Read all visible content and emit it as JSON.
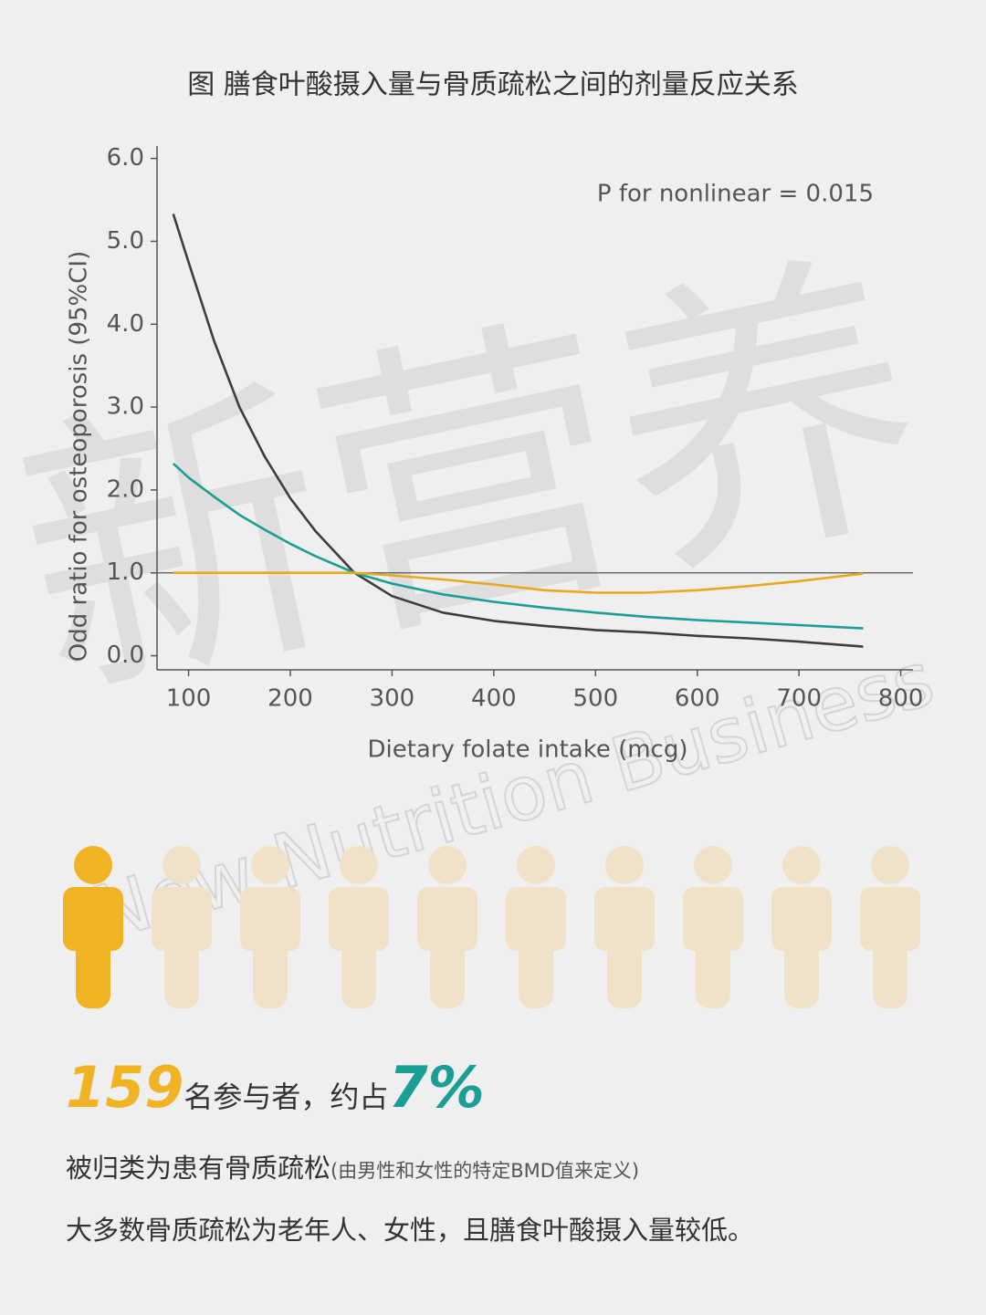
{
  "chart_data": {
    "type": "line",
    "title": "图 膳食叶酸摄入量与骨质疏松之间的剂量反应关系",
    "annotation": "P for nonlinear = 0.015",
    "xlabel": "Dietary folate intake (mcg)",
    "ylabel": "Odd ratio for osteoporosis (95%CI)",
    "x": [
      85,
      100,
      125,
      150,
      175,
      200,
      225,
      263,
      300,
      350,
      400,
      450,
      500,
      550,
      600,
      650,
      700,
      763
    ],
    "series": [
      {
        "color": "#3d3d3d",
        "values": [
          5.33,
          4.75,
          3.8,
          3.0,
          2.4,
          1.9,
          1.5,
          1.0,
          0.72,
          0.52,
          0.42,
          0.36,
          0.31,
          0.28,
          0.24,
          0.21,
          0.17,
          0.11
        ]
      },
      {
        "color": "#1a9e96",
        "values": [
          2.32,
          2.15,
          1.92,
          1.7,
          1.52,
          1.35,
          1.2,
          1.0,
          0.87,
          0.74,
          0.65,
          0.58,
          0.52,
          0.47,
          0.43,
          0.4,
          0.37,
          0.33
        ]
      },
      {
        "color": "#e8a920",
        "values": [
          1.0,
          1.0,
          1.0,
          1.0,
          1.0,
          1.0,
          1.0,
          1.0,
          0.97,
          0.92,
          0.86,
          0.79,
          0.76,
          0.76,
          0.79,
          0.84,
          0.9,
          0.99
        ]
      }
    ],
    "reference_line": 1.0,
    "xlim": [
      69,
      812
    ],
    "ylim": [
      -0.17,
      6.15
    ],
    "xticks": [
      100,
      200,
      300,
      400,
      500,
      600,
      700,
      800
    ],
    "yticks": [
      {
        "value": 0,
        "label": "0.0"
      },
      {
        "value": 1,
        "label": "1.0"
      },
      {
        "value": 2,
        "label": "2.0"
      },
      {
        "value": 3,
        "label": "3.0"
      },
      {
        "value": 4,
        "label": "4.0"
      },
      {
        "value": 5,
        "label": "5.0"
      },
      {
        "value": 6,
        "label": "6.0"
      }
    ],
    "grid": false
  },
  "watermark": {
    "logo": "新营养",
    "text": "New Nutrition Business"
  },
  "summary": {
    "count": "159",
    "count_text": "名参与者，约占",
    "percent": "7%",
    "line2": "被归类为患有骨质疏松",
    "line2_note": "(由男性和女性的特定BMD值来定义)",
    "line3": "大多数骨质疏松为老年人、女性，且膳食叶酸摄入量较低。"
  }
}
